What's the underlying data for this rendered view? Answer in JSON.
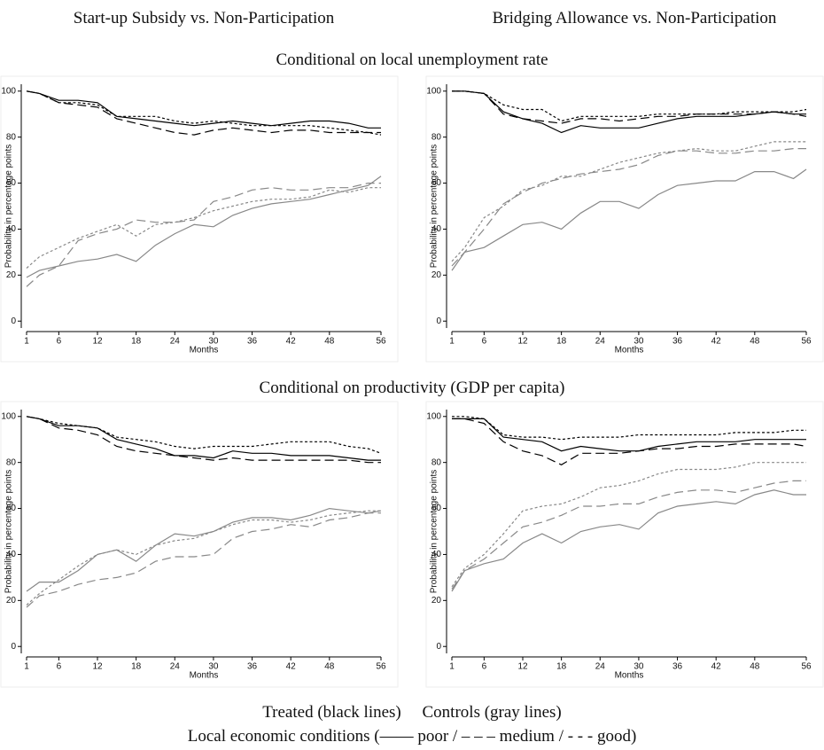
{
  "headers": {
    "column_titles": [
      "Start-up Subsidy vs. Non-Participation",
      "Bridging Allowance vs. Non-Participation"
    ],
    "row_titles": [
      "Conditional on local unemployment rate",
      "Conditional on productivity (GDP per capita)"
    ],
    "legend_lines": [
      "Treated (black lines)     Controls (gray lines)",
      "Local economic conditions (—— poor / – – – medium / - - - good)"
    ]
  },
  "chart_data": [
    {
      "type": "line",
      "xlabel": "Months",
      "ylabel": "Probability in percentage points",
      "x": [
        1,
        3,
        6,
        9,
        12,
        15,
        18,
        21,
        24,
        27,
        30,
        33,
        36,
        39,
        42,
        45,
        48,
        51,
        54,
        56
      ],
      "xlim": [
        1,
        56
      ],
      "ylim": [
        -3,
        103
      ],
      "xticks": [
        1,
        6,
        12,
        18,
        24,
        30,
        36,
        42,
        48,
        56
      ],
      "yticks": [
        0,
        20,
        40,
        60,
        80,
        100
      ],
      "series": [
        {
          "color": "#000000",
          "dash": "solid",
          "values": [
            100,
            99,
            96,
            96,
            95,
            89,
            88,
            87,
            86,
            85,
            86,
            87,
            86,
            85,
            86,
            87,
            87,
            86,
            84,
            84
          ]
        },
        {
          "color": "#000000",
          "dash": "dashed",
          "values": [
            100,
            99,
            95,
            94,
            93,
            88,
            86,
            84,
            82,
            81,
            83,
            84,
            83,
            82,
            83,
            83,
            82,
            82,
            82,
            82
          ]
        },
        {
          "color": "#000000",
          "dash": "dotted",
          "values": [
            100,
            99,
            95,
            95,
            94,
            89,
            89,
            89,
            87,
            86,
            87,
            86,
            85,
            85,
            85,
            85,
            84,
            83,
            82,
            81
          ]
        },
        {
          "color": "#888888",
          "dash": "solid",
          "values": [
            19,
            22,
            24,
            26,
            27,
            29,
            26,
            33,
            38,
            42,
            41,
            46,
            49,
            51,
            52,
            53,
            55,
            57,
            59,
            63
          ]
        },
        {
          "color": "#888888",
          "dash": "dashed",
          "values": [
            15,
            20,
            24,
            35,
            38,
            40,
            44,
            43,
            43,
            44,
            52,
            54,
            57,
            58,
            57,
            57,
            58,
            58,
            60,
            60
          ]
        },
        {
          "color": "#888888",
          "dash": "dotted",
          "values": [
            23,
            28,
            32,
            36,
            39,
            42,
            37,
            42,
            43,
            45,
            48,
            50,
            52,
            53,
            53,
            54,
            57,
            56,
            58,
            58
          ]
        }
      ]
    },
    {
      "type": "line",
      "xlabel": "Months",
      "ylabel": "Probability in percentage points",
      "x": [
        1,
        3,
        6,
        9,
        12,
        15,
        18,
        21,
        24,
        27,
        30,
        33,
        36,
        39,
        42,
        45,
        48,
        51,
        54,
        56
      ],
      "xlim": [
        1,
        56
      ],
      "ylim": [
        -3,
        103
      ],
      "xticks": [
        1,
        6,
        12,
        18,
        24,
        30,
        36,
        42,
        48,
        56
      ],
      "yticks": [
        0,
        20,
        40,
        60,
        80,
        100
      ],
      "series": [
        {
          "color": "#000000",
          "dash": "solid",
          "values": [
            100,
            100,
            99,
            91,
            88,
            86,
            82,
            85,
            84,
            84,
            84,
            86,
            88,
            89,
            89,
            89,
            90,
            91,
            90,
            90
          ]
        },
        {
          "color": "#000000",
          "dash": "dashed",
          "values": [
            100,
            100,
            99,
            90,
            88,
            87,
            86,
            88,
            88,
            87,
            88,
            89,
            89,
            90,
            90,
            90,
            90,
            91,
            90,
            89
          ]
        },
        {
          "color": "#000000",
          "dash": "dotted",
          "values": [
            100,
            100,
            99,
            94,
            92,
            92,
            87,
            89,
            89,
            89,
            89,
            90,
            90,
            90,
            90,
            91,
            91,
            91,
            91,
            92
          ]
        },
        {
          "color": "#888888",
          "dash": "solid",
          "values": [
            22,
            30,
            32,
            37,
            42,
            43,
            40,
            47,
            52,
            52,
            49,
            55,
            59,
            60,
            61,
            61,
            65,
            65,
            62,
            66
          ]
        },
        {
          "color": "#888888",
          "dash": "dashed",
          "values": [
            24,
            30,
            40,
            51,
            56,
            60,
            62,
            64,
            65,
            66,
            68,
            72,
            74,
            74,
            73,
            73,
            74,
            74,
            75,
            75
          ]
        },
        {
          "color": "#888888",
          "dash": "dotted",
          "values": [
            26,
            32,
            45,
            50,
            57,
            59,
            63,
            63,
            66,
            69,
            71,
            73,
            74,
            75,
            74,
            74,
            76,
            78,
            78,
            78
          ]
        }
      ]
    },
    {
      "type": "line",
      "xlabel": "Months",
      "ylabel": "Probability in percentage points",
      "x": [
        1,
        3,
        6,
        9,
        12,
        15,
        18,
        21,
        24,
        27,
        30,
        33,
        36,
        39,
        42,
        45,
        48,
        51,
        54,
        56
      ],
      "xlim": [
        1,
        56
      ],
      "ylim": [
        -3,
        103
      ],
      "xticks": [
        1,
        6,
        12,
        18,
        24,
        30,
        36,
        42,
        48,
        56
      ],
      "yticks": [
        0,
        20,
        40,
        60,
        80,
        100
      ],
      "series": [
        {
          "color": "#000000",
          "dash": "solid",
          "values": [
            100,
            99,
            96,
            96,
            95,
            90,
            88,
            86,
            83,
            83,
            82,
            85,
            84,
            84,
            83,
            83,
            83,
            82,
            81,
            81
          ]
        },
        {
          "color": "#000000",
          "dash": "dashed",
          "values": [
            100,
            99,
            95,
            94,
            92,
            87,
            85,
            84,
            83,
            82,
            81,
            82,
            81,
            81,
            81,
            81,
            81,
            81,
            80,
            80
          ]
        },
        {
          "color": "#000000",
          "dash": "dotted",
          "values": [
            100,
            99,
            97,
            96,
            95,
            91,
            90,
            89,
            87,
            86,
            87,
            87,
            87,
            88,
            89,
            89,
            89,
            87,
            86,
            84
          ]
        },
        {
          "color": "#888888",
          "dash": "solid",
          "values": [
            24,
            28,
            28,
            33,
            40,
            42,
            37,
            44,
            49,
            48,
            50,
            54,
            56,
            56,
            55,
            57,
            60,
            59,
            58,
            59
          ]
        },
        {
          "color": "#888888",
          "dash": "dashed",
          "values": [
            17,
            22,
            24,
            27,
            29,
            30,
            32,
            37,
            39,
            39,
            40,
            47,
            50,
            51,
            53,
            52,
            55,
            56,
            58,
            58
          ]
        },
        {
          "color": "#888888",
          "dash": "dotted",
          "values": [
            18,
            23,
            29,
            35,
            40,
            42,
            40,
            44,
            46,
            47,
            50,
            53,
            55,
            55,
            54,
            55,
            57,
            58,
            59,
            59
          ]
        }
      ]
    },
    {
      "type": "line",
      "xlabel": "Months",
      "ylabel": "Probability in percentage points",
      "x": [
        1,
        3,
        6,
        9,
        12,
        15,
        18,
        21,
        24,
        27,
        30,
        33,
        36,
        39,
        42,
        45,
        48,
        51,
        54,
        56
      ],
      "xlim": [
        1,
        56
      ],
      "ylim": [
        -3,
        103
      ],
      "xticks": [
        1,
        6,
        12,
        18,
        24,
        30,
        36,
        42,
        48,
        56
      ],
      "yticks": [
        0,
        20,
        40,
        60,
        80,
        100
      ],
      "series": [
        {
          "color": "#000000",
          "dash": "solid",
          "values": [
            99,
            99,
            99,
            91,
            90,
            89,
            85,
            87,
            86,
            85,
            85,
            87,
            88,
            89,
            89,
            89,
            90,
            90,
            90,
            90
          ]
        },
        {
          "color": "#000000",
          "dash": "dashed",
          "values": [
            99,
            99,
            97,
            89,
            85,
            83,
            79,
            84,
            84,
            84,
            85,
            86,
            86,
            87,
            87,
            88,
            88,
            88,
            88,
            87
          ]
        },
        {
          "color": "#000000",
          "dash": "dotted",
          "values": [
            100,
            100,
            99,
            92,
            91,
            91,
            90,
            91,
            91,
            91,
            92,
            92,
            92,
            92,
            92,
            93,
            93,
            93,
            94,
            94
          ]
        },
        {
          "color": "#888888",
          "dash": "solid",
          "values": [
            24,
            33,
            36,
            38,
            45,
            49,
            45,
            50,
            52,
            53,
            51,
            58,
            61,
            62,
            63,
            62,
            66,
            68,
            66,
            66
          ]
        },
        {
          "color": "#888888",
          "dash": "dashed",
          "values": [
            25,
            33,
            38,
            45,
            52,
            54,
            57,
            61,
            61,
            62,
            62,
            65,
            67,
            68,
            68,
            67,
            69,
            71,
            72,
            72
          ]
        },
        {
          "color": "#888888",
          "dash": "dotted",
          "values": [
            26,
            34,
            40,
            49,
            59,
            61,
            62,
            65,
            69,
            70,
            72,
            75,
            77,
            77,
            77,
            78,
            80,
            80,
            80,
            80
          ]
        }
      ]
    }
  ]
}
